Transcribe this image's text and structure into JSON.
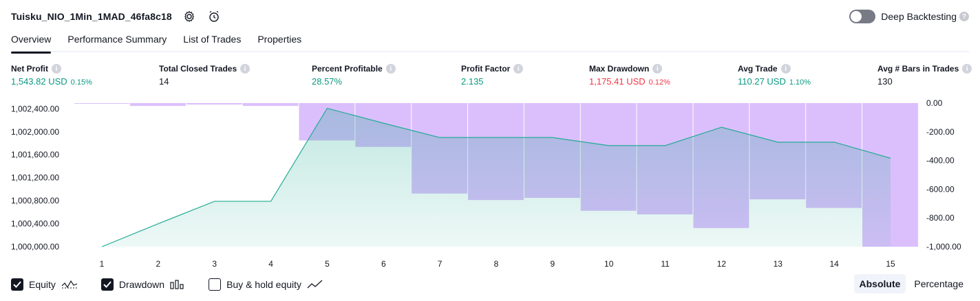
{
  "header": {
    "title": "Tuisku_NIO_1Min_1MAD_46fa8c18",
    "deep_backtesting_label": "Deep Backtesting",
    "deep_backtesting_enabled": false
  },
  "tabs": [
    {
      "label": "Overview",
      "active": true
    },
    {
      "label": "Performance Summary",
      "active": false
    },
    {
      "label": "List of Trades",
      "active": false
    },
    {
      "label": "Properties",
      "active": false
    }
  ],
  "metrics": [
    {
      "label": "Net Profit",
      "value": "1,543.82 USD",
      "pct": "0.15%",
      "tone": "pos"
    },
    {
      "label": "Total Closed Trades",
      "value": "14",
      "pct": "",
      "tone": "neu"
    },
    {
      "label": "Percent Profitable",
      "value": "28.57%",
      "pct": "",
      "tone": "pos"
    },
    {
      "label": "Profit Factor",
      "value": "2.135",
      "pct": "",
      "tone": "pos"
    },
    {
      "label": "Max Drawdown",
      "value": "1,175.41 USD",
      "pct": "0.12%",
      "tone": "neg"
    },
    {
      "label": "Avg Trade",
      "value": "110.27 USD",
      "pct": "1.10%",
      "tone": "pos"
    },
    {
      "label": "Avg # Bars in Trades",
      "value": "130",
      "pct": "",
      "tone": "neu"
    }
  ],
  "chart_data": {
    "type": "line",
    "x": [
      1,
      2,
      3,
      4,
      5,
      6,
      7,
      8,
      9,
      10,
      11,
      12,
      13,
      14,
      15
    ],
    "series": [
      {
        "name": "Equity",
        "axis": "left",
        "values": [
          1000000,
          1000400,
          1000790,
          1000790,
          1002410,
          1002150,
          1001900,
          1001900,
          1001900,
          1001760,
          1001760,
          1002080,
          1001820,
          1001820,
          1001540
        ]
      },
      {
        "name": "Drawdown",
        "axis": "right",
        "type": "bar",
        "values": [
          0,
          -20,
          -10,
          -20,
          -260,
          -305,
          -630,
          -675,
          -660,
          -750,
          -775,
          -870,
          -670,
          -730,
          -1000
        ]
      }
    ],
    "left_ticks": [
      "1,000,000.00",
      "1,000,400.00",
      "1,000,800.00",
      "1,001,200.00",
      "1,001,600.00",
      "1,002,000.00",
      "1,002,400.00"
    ],
    "right_ticks": [
      "0.00",
      "-200.00",
      "-400.00",
      "-600.00",
      "-800.00",
      "-1,000.00"
    ],
    "ylim_left": [
      1000000,
      1002500
    ],
    "ylim_right": [
      -1000,
      0
    ],
    "colors": {
      "equity_line": "#22ab94",
      "equity_fill": "#22ab94",
      "drawdown": "#d5b4fc"
    }
  },
  "legend": [
    {
      "label": "Equity",
      "checked": true,
      "icon": "equity-wave-icon"
    },
    {
      "label": "Drawdown",
      "checked": true,
      "icon": "drawdown-bars-icon"
    },
    {
      "label": "Buy & hold equity",
      "checked": false,
      "icon": "trend-line-icon"
    }
  ],
  "modes": [
    {
      "label": "Absolute",
      "active": true
    },
    {
      "label": "Percentage",
      "active": false
    }
  ]
}
